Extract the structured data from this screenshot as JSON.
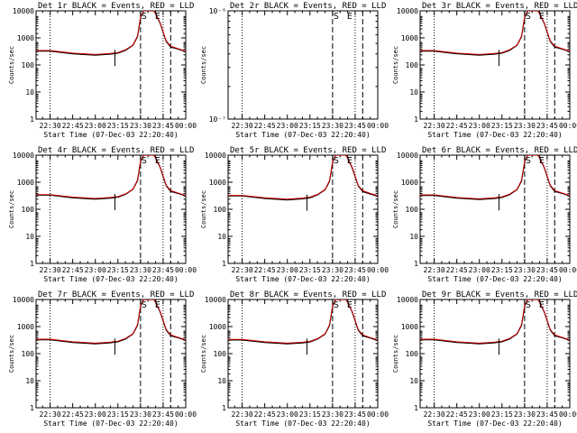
{
  "figure": {
    "time_ticks": [
      "22:30",
      "22:45",
      "23:00",
      "23:15",
      "23:30",
      "23:45",
      "00:00"
    ],
    "x_label": "Start Time (07-Dec-03 22:20:40)",
    "y_label": "Counts/sec",
    "s_marker": "S",
    "e_marker": "E",
    "colors": {
      "events": "#000000",
      "lld": "#cc0000",
      "background": "#ffffff"
    }
  },
  "chart_data": [
    {
      "type": "line",
      "title": "Det 1r BLACK = Events, RED = LLD",
      "x_label": "Start Time (07-Dec-03 22:20:40)",
      "y_label": "Counts/sec",
      "x_range": [
        "22:20:40",
        "00:00"
      ],
      "y_scale": "log",
      "ylim": [
        1,
        15000
      ],
      "y_ticks": [
        "1",
        "10",
        "100",
        "1000",
        "10000"
      ],
      "dotted_lines": [
        "22:30",
        "23:45"
      ],
      "dashed_lines": [
        "23:30",
        "23:50"
      ],
      "markers": [
        {
          "label": "S",
          "x": "23:30"
        },
        {
          "label": "E",
          "x": "23:39"
        }
      ],
      "series": [
        {
          "color": "#000000",
          "x": [
            "22:20",
            "22:30",
            "22:45",
            "23:00",
            "23:10",
            "23:15",
            "23:20",
            "23:25",
            "23:28",
            "23:30",
            "23:32",
            "23:39",
            "23:43",
            "23:47",
            "23:50",
            "23:55",
            "00:00"
          ],
          "y": [
            420,
            420,
            330,
            290,
            320,
            350,
            450,
            700,
            1500,
            8000,
            15000,
            15000,
            5000,
            1000,
            600,
            500,
            400
          ]
        },
        {
          "color": "#cc0000",
          "x": [
            "22:20",
            "22:30",
            "22:45",
            "23:00",
            "23:10",
            "23:15",
            "23:20",
            "23:25",
            "23:28",
            "23:30",
            "23:32",
            "23:39",
            "23:43",
            "23:47",
            "23:50",
            "23:55",
            "00:00"
          ],
          "y": [
            440,
            440,
            350,
            310,
            340,
            370,
            470,
            720,
            1600,
            8500,
            15000,
            15000,
            5200,
            1050,
            650,
            520,
            420
          ]
        }
      ]
    },
    {
      "type": "line",
      "title": "Det 2r BLACK = Events, RED = LLD",
      "x_label": "Start Time (07-Dec-03 22:20:40)",
      "y_label": "Counts/sec",
      "x_range": [
        "22:20:40",
        "00:00"
      ],
      "y_scale": "log",
      "ylim": [
        1e-07,
        1e-06
      ],
      "y_ticks": [
        "10⁻⁷",
        "10⁻⁶"
      ],
      "dotted_lines": [
        "22:30",
        "23:45"
      ],
      "dashed_lines": [
        "23:30",
        "23:50"
      ],
      "markers": [
        {
          "label": "S",
          "x": "23:30"
        },
        {
          "label": "E",
          "x": "23:39"
        }
      ],
      "series": []
    },
    {
      "type": "line",
      "title": "Det 3r BLACK = Events, RED = LLD",
      "x_label": "Start Time (07-Dec-03 22:20:40)",
      "y_label": "Counts/sec",
      "x_range": [
        "22:20:40",
        "00:00"
      ],
      "y_scale": "log",
      "ylim": [
        1,
        15000
      ],
      "y_ticks": [
        "1",
        "10",
        "100",
        "1000",
        "10000"
      ],
      "dotted_lines": [
        "22:30",
        "23:45"
      ],
      "dashed_lines": [
        "23:30",
        "23:50"
      ],
      "markers": [
        {
          "label": "S",
          "x": "23:30"
        },
        {
          "label": "E",
          "x": "23:39"
        }
      ],
      "series": [
        {
          "color": "#000000",
          "x": [
            "22:20",
            "22:30",
            "22:45",
            "23:00",
            "23:10",
            "23:15",
            "23:20",
            "23:25",
            "23:28",
            "23:30",
            "23:32",
            "23:39",
            "23:43",
            "23:47",
            "23:50",
            "23:55",
            "00:00"
          ],
          "y": [
            420,
            420,
            330,
            290,
            320,
            350,
            450,
            700,
            1500,
            8000,
            15000,
            15000,
            5000,
            1000,
            600,
            500,
            400
          ]
        },
        {
          "color": "#cc0000",
          "x": [
            "22:20",
            "22:30",
            "22:45",
            "23:00",
            "23:10",
            "23:15",
            "23:20",
            "23:25",
            "23:28",
            "23:30",
            "23:32",
            "23:39",
            "23:43",
            "23:47",
            "23:50",
            "23:55",
            "00:00"
          ],
          "y": [
            440,
            440,
            350,
            310,
            340,
            370,
            470,
            720,
            1600,
            8500,
            15000,
            15000,
            5200,
            1050,
            650,
            520,
            420
          ]
        }
      ]
    },
    {
      "type": "line",
      "title": "Det 4r BLACK = Events, RED = LLD",
      "x_label": "Start Time (07-Dec-03 22:20:40)",
      "y_label": "Counts/sec",
      "x_range": [
        "22:20:40",
        "00:00"
      ],
      "y_scale": "log",
      "ylim": [
        1,
        15000
      ],
      "y_ticks": [
        "1",
        "10",
        "100",
        "1000",
        "10000"
      ],
      "dotted_lines": [
        "22:30",
        "23:45"
      ],
      "dashed_lines": [
        "23:30",
        "23:50"
      ],
      "markers": [
        {
          "label": "S",
          "x": "23:30"
        },
        {
          "label": "E",
          "x": "23:39"
        }
      ],
      "series": [
        {
          "color": "#000000",
          "x": [
            "22:20",
            "22:30",
            "22:45",
            "23:00",
            "23:10",
            "23:15",
            "23:20",
            "23:25",
            "23:28",
            "23:30",
            "23:32",
            "23:39",
            "23:43",
            "23:47",
            "23:50",
            "23:55",
            "00:00"
          ],
          "y": [
            430,
            430,
            340,
            300,
            330,
            360,
            460,
            720,
            1550,
            8200,
            15000,
            15000,
            5100,
            1000,
            600,
            500,
            400
          ]
        },
        {
          "color": "#cc0000",
          "x": [
            "22:20",
            "22:30",
            "22:45",
            "23:00",
            "23:10",
            "23:15",
            "23:20",
            "23:25",
            "23:28",
            "23:30",
            "23:32",
            "23:39",
            "23:43",
            "23:47",
            "23:50",
            "23:55",
            "00:00"
          ],
          "y": [
            450,
            450,
            360,
            320,
            350,
            380,
            480,
            740,
            1650,
            8700,
            15000,
            15000,
            5300,
            1050,
            650,
            520,
            420
          ]
        }
      ]
    },
    {
      "type": "line",
      "title": "Det 5r BLACK = Events, RED = LLD",
      "x_label": "Start Time (07-Dec-03 22:20:40)",
      "y_label": "Counts/sec",
      "x_range": [
        "22:20:40",
        "00:00"
      ],
      "y_scale": "log",
      "ylim": [
        1,
        15000
      ],
      "y_ticks": [
        "1",
        "10",
        "100",
        "1000",
        "10000"
      ],
      "dotted_lines": [
        "22:30",
        "23:45"
      ],
      "dashed_lines": [
        "23:30",
        "23:50"
      ],
      "markers": [
        {
          "label": "S",
          "x": "23:30"
        },
        {
          "label": "E",
          "x": "23:39"
        }
      ],
      "series": [
        {
          "color": "#000000",
          "x": [
            "22:20",
            "22:30",
            "22:45",
            "23:00",
            "23:10",
            "23:15",
            "23:20",
            "23:25",
            "23:28",
            "23:30",
            "23:32",
            "23:39",
            "23:43",
            "23:47",
            "23:50",
            "23:55",
            "00:00"
          ],
          "y": [
            400,
            400,
            320,
            280,
            310,
            340,
            440,
            690,
            1450,
            7800,
            15000,
            15000,
            4900,
            980,
            590,
            480,
            390
          ]
        },
        {
          "color": "#cc0000",
          "x": [
            "22:20",
            "22:30",
            "22:45",
            "23:00",
            "23:10",
            "23:15",
            "23:20",
            "23:25",
            "23:28",
            "23:30",
            "23:32",
            "23:39",
            "23:43",
            "23:47",
            "23:50",
            "23:55",
            "00:00"
          ],
          "y": [
            420,
            420,
            340,
            300,
            330,
            360,
            460,
            710,
            1550,
            8300,
            15000,
            15000,
            5100,
            1030,
            640,
            500,
            410
          ]
        }
      ]
    },
    {
      "type": "line",
      "title": "Det 6r BLACK = Events, RED = LLD",
      "x_label": "Start Time (07-Dec-03 22:20:40)",
      "y_label": "Counts/sec",
      "x_range": [
        "22:20:40",
        "00:00"
      ],
      "y_scale": "log",
      "ylim": [
        1,
        15000
      ],
      "y_ticks": [
        "1",
        "10",
        "100",
        "1000",
        "10000"
      ],
      "dotted_lines": [
        "22:30",
        "23:45"
      ],
      "dashed_lines": [
        "23:30",
        "23:50"
      ],
      "markers": [
        {
          "label": "S",
          "x": "23:30"
        },
        {
          "label": "E",
          "x": "23:39"
        }
      ],
      "series": [
        {
          "color": "#000000",
          "x": [
            "22:20",
            "22:30",
            "22:45",
            "23:00",
            "23:10",
            "23:15",
            "23:20",
            "23:25",
            "23:28",
            "23:30",
            "23:32",
            "23:39",
            "23:43",
            "23:47",
            "23:50",
            "23:55",
            "00:00"
          ],
          "y": [
            420,
            420,
            330,
            290,
            320,
            350,
            450,
            700,
            1500,
            8000,
            15000,
            15000,
            5000,
            1000,
            600,
            500,
            400
          ]
        },
        {
          "color": "#cc0000",
          "x": [
            "22:20",
            "22:30",
            "22:45",
            "23:00",
            "23:10",
            "23:15",
            "23:20",
            "23:25",
            "23:28",
            "23:30",
            "23:32",
            "23:39",
            "23:43",
            "23:47",
            "23:50",
            "23:55",
            "00:00"
          ],
          "y": [
            440,
            440,
            350,
            310,
            340,
            370,
            470,
            720,
            1600,
            8500,
            15000,
            15000,
            5200,
            1050,
            650,
            520,
            420
          ]
        }
      ]
    },
    {
      "type": "line",
      "title": "Det 7r BLACK = Events, RED = LLD",
      "x_label": "Start Time (07-Dec-03 22:20:40)",
      "y_label": "Counts/sec",
      "x_range": [
        "22:20:40",
        "00:00"
      ],
      "y_scale": "log",
      "ylim": [
        1,
        15000
      ],
      "y_ticks": [
        "1",
        "10",
        "100",
        "1000",
        "10000"
      ],
      "dotted_lines": [
        "22:30",
        "23:45"
      ],
      "dashed_lines": [
        "23:30",
        "23:50"
      ],
      "markers": [
        {
          "label": "S",
          "x": "23:30"
        },
        {
          "label": "E",
          "x": "23:39"
        }
      ],
      "series": [
        {
          "color": "#000000",
          "x": [
            "22:20",
            "22:30",
            "22:45",
            "23:00",
            "23:10",
            "23:15",
            "23:20",
            "23:25",
            "23:28",
            "23:30",
            "23:32",
            "23:39",
            "23:43",
            "23:47",
            "23:50",
            "23:55",
            "00:00"
          ],
          "y": [
            420,
            420,
            330,
            290,
            320,
            350,
            450,
            700,
            1500,
            8000,
            15000,
            15000,
            5000,
            1000,
            600,
            500,
            400
          ]
        },
        {
          "color": "#cc0000",
          "x": [
            "22:20",
            "22:30",
            "22:45",
            "23:00",
            "23:10",
            "23:15",
            "23:20",
            "23:25",
            "23:28",
            "23:30",
            "23:32",
            "23:39",
            "23:43",
            "23:47",
            "23:50",
            "23:55",
            "00:00"
          ],
          "y": [
            440,
            440,
            350,
            310,
            340,
            370,
            470,
            720,
            1600,
            8500,
            15000,
            15000,
            5200,
            1050,
            650,
            520,
            420
          ]
        }
      ]
    },
    {
      "type": "line",
      "title": "Det 8r BLACK = Events, RED = LLD",
      "x_label": "Start Time (07-Dec-03 22:20:40)",
      "y_label": "Counts/sec",
      "x_range": [
        "22:20:40",
        "00:00"
      ],
      "y_scale": "log",
      "ylim": [
        1,
        15000
      ],
      "y_ticks": [
        "1",
        "10",
        "100",
        "1000",
        "10000"
      ],
      "dotted_lines": [
        "22:30",
        "23:45"
      ],
      "dashed_lines": [
        "23:30",
        "23:50"
      ],
      "markers": [
        {
          "label": "S",
          "x": "23:30"
        },
        {
          "label": "E",
          "x": "23:39"
        }
      ],
      "series": [
        {
          "color": "#000000",
          "x": [
            "22:20",
            "22:30",
            "22:45",
            "23:00",
            "23:10",
            "23:15",
            "23:20",
            "23:25",
            "23:28",
            "23:30",
            "23:32",
            "23:39",
            "23:43",
            "23:47",
            "23:50",
            "23:55",
            "00:00"
          ],
          "y": [
            410,
            410,
            330,
            290,
            315,
            345,
            445,
            690,
            1480,
            7900,
            15000,
            15000,
            4950,
            990,
            600,
            490,
            395
          ]
        },
        {
          "color": "#cc0000",
          "x": [
            "22:20",
            "22:30",
            "22:45",
            "23:00",
            "23:10",
            "23:15",
            "23:20",
            "23:25",
            "23:28",
            "23:30",
            "23:32",
            "23:39",
            "23:43",
            "23:47",
            "23:50",
            "23:55",
            "00:00"
          ],
          "y": [
            430,
            430,
            350,
            310,
            335,
            365,
            465,
            710,
            1580,
            8400,
            15000,
            15000,
            5150,
            1040,
            650,
            510,
            415
          ]
        }
      ]
    },
    {
      "type": "line",
      "title": "Det 9r BLACK = Events, RED = LLD",
      "x_label": "Start Time (07-Dec-03 22:20:40)",
      "y_label": "Counts/sec",
      "x_range": [
        "22:20:40",
        "00:00"
      ],
      "y_scale": "log",
      "ylim": [
        1,
        15000
      ],
      "y_ticks": [
        "1",
        "10",
        "100",
        "1000",
        "10000"
      ],
      "dotted_lines": [
        "22:30",
        "23:45"
      ],
      "dashed_lines": [
        "23:30",
        "23:50"
      ],
      "markers": [
        {
          "label": "S",
          "x": "23:30"
        },
        {
          "label": "E",
          "x": "23:39"
        }
      ],
      "series": [
        {
          "color": "#000000",
          "x": [
            "22:20",
            "22:30",
            "22:45",
            "23:00",
            "23:10",
            "23:15",
            "23:20",
            "23:25",
            "23:28",
            "23:30",
            "23:32",
            "23:39",
            "23:43",
            "23:47",
            "23:50",
            "23:55",
            "00:00"
          ],
          "y": [
            420,
            420,
            330,
            290,
            320,
            350,
            450,
            700,
            1500,
            8000,
            15000,
            15000,
            5000,
            1000,
            600,
            500,
            400
          ]
        },
        {
          "color": "#cc0000",
          "x": [
            "22:20",
            "22:30",
            "22:45",
            "23:00",
            "23:10",
            "23:15",
            "23:20",
            "23:25",
            "23:28",
            "23:30",
            "23:32",
            "23:39",
            "23:43",
            "23:47",
            "23:50",
            "23:55",
            "00:00"
          ],
          "y": [
            440,
            440,
            350,
            310,
            340,
            370,
            470,
            720,
            1600,
            8500,
            15000,
            15000,
            5200,
            1050,
            650,
            520,
            420
          ]
        }
      ]
    }
  ]
}
